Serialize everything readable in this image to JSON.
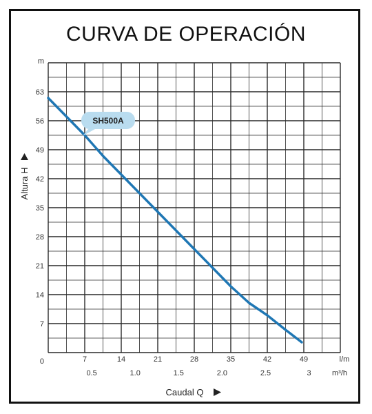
{
  "chart_data": {
    "type": "line",
    "title": "CURVA DE OPERACIÓN",
    "ylabel": "Altura  H",
    "y_unit": "m",
    "xlabel": "Caudal  Q",
    "x_unit_primary": "l/m",
    "x_unit_secondary": "m³/h",
    "origin_label": "0",
    "x_ticks": [
      "7",
      "14",
      "21",
      "28",
      "35",
      "42",
      "49"
    ],
    "x_ticks_secondary": [
      "0.5",
      "1.0",
      "1.5",
      "2.0",
      "2.5",
      "3"
    ],
    "y_ticks": [
      "7",
      "14",
      "21",
      "28",
      "35",
      "42",
      "49",
      "56",
      "63"
    ],
    "xlim": [
      0,
      56
    ],
    "ylim": [
      0,
      70
    ],
    "grid": true,
    "series": [
      {
        "name": "SH500A",
        "color": "#1f77b4",
        "x": [
          0,
          3.5,
          7,
          10.5,
          14,
          17.5,
          21,
          24.5,
          28,
          31.5,
          35,
          38.5,
          42,
          45.5,
          48.6
        ],
        "y": [
          61.5,
          57,
          52.5,
          47.5,
          43,
          38.5,
          34,
          29.5,
          25,
          20.5,
          16,
          12,
          9,
          5.5,
          2.5
        ]
      }
    ]
  }
}
